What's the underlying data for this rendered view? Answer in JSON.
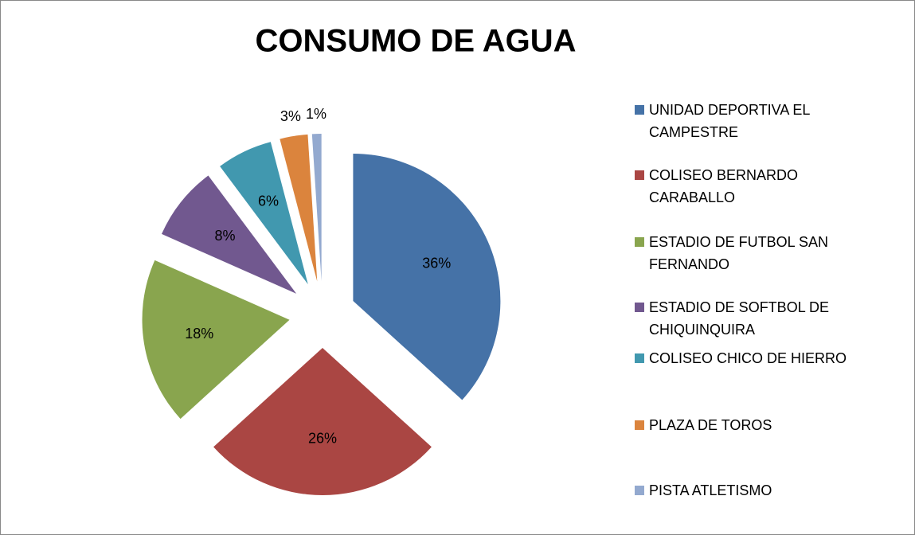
{
  "chart_data": {
    "type": "pie",
    "title": "CONSUMO DE AGUA",
    "categories": [
      "UNIDAD DEPORTIVA EL CAMPESTRE",
      "COLISEO BERNARDO CARABALLO",
      "ESTADIO DE FUTBOL SAN FERNANDO",
      "ESTADIO DE SOFTBOL DE CHIQUINQUIRA",
      "COLISEO CHICO DE HIERRO",
      "PLAZA DE TOROS",
      "PISTA ATLETISMO"
    ],
    "values": [
      36,
      26,
      18,
      8,
      6,
      3,
      1
    ],
    "value_labels": [
      "36%",
      "26%",
      "18%",
      "8%",
      "6%",
      "3%",
      "1%"
    ],
    "colors": [
      "#4572a7",
      "#aa4643",
      "#89a54e",
      "#71588f",
      "#4198af",
      "#db843d",
      "#93a9cf"
    ],
    "legend": "right"
  }
}
